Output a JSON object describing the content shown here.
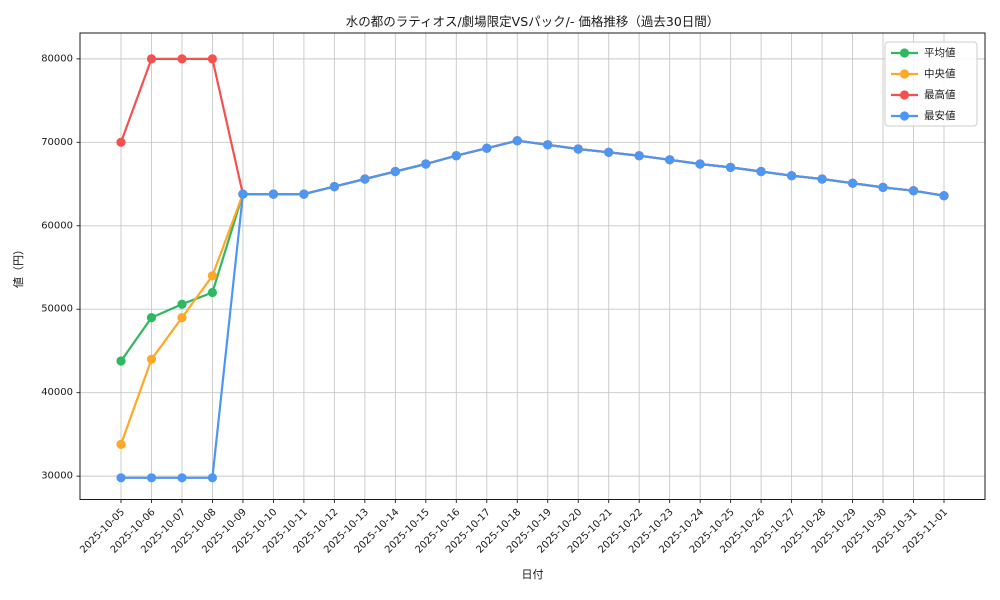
{
  "chart_data": {
    "type": "line",
    "title": "水の都のラティオス/劇場限定VSパック/- 価格推移（過去30日間）",
    "xlabel": "日付",
    "ylabel": "値（円）",
    "grid": true,
    "legend_position": "upper right",
    "ylim": [
      27200,
      83100
    ],
    "yticks": [
      30000,
      40000,
      50000,
      60000,
      70000,
      80000
    ],
    "x": [
      "2025-10-05",
      "2025-10-06",
      "2025-10-07",
      "2025-10-08",
      "2025-10-09",
      "2025-10-10",
      "2025-10-11",
      "2025-10-12",
      "2025-10-13",
      "2025-10-14",
      "2025-10-15",
      "2025-10-16",
      "2025-10-17",
      "2025-10-18",
      "2025-10-19",
      "2025-10-20",
      "2025-10-21",
      "2025-10-22",
      "2025-10-23",
      "2025-10-24",
      "2025-10-25",
      "2025-10-26",
      "2025-10-27",
      "2025-10-28",
      "2025-10-29",
      "2025-10-30",
      "2025-10-31",
      "2025-11-01"
    ],
    "series": [
      {
        "name": "平均値",
        "color": "#2eb860",
        "values": [
          43800,
          49000,
          50600,
          52000,
          63800,
          63800,
          63800,
          64700,
          65600,
          66500,
          67400,
          68400,
          69300,
          70200,
          69700,
          69200,
          68800,
          68400,
          67900,
          67400,
          67000,
          66500,
          66000,
          65600,
          65100,
          64600,
          64200,
          63600
        ]
      },
      {
        "name": "中央値",
        "color": "#ffa726",
        "values": [
          33800,
          44000,
          49000,
          54000,
          63800,
          63800,
          63800,
          64700,
          65600,
          66500,
          67400,
          68400,
          69300,
          70200,
          69700,
          69200,
          68800,
          68400,
          67900,
          67400,
          67000,
          66500,
          66000,
          65600,
          65100,
          64600,
          64200,
          63600
        ]
      },
      {
        "name": "最高値",
        "color": "#f4514e",
        "values": [
          70000,
          80000,
          80000,
          80000,
          63800,
          63800,
          63800,
          64700,
          65600,
          66500,
          67400,
          68400,
          69300,
          70200,
          69700,
          69200,
          68800,
          68400,
          67900,
          67400,
          67000,
          66500,
          66000,
          65600,
          65100,
          64600,
          64200,
          63600
        ]
      },
      {
        "name": "最安値",
        "color": "#4e96f3",
        "values": [
          29800,
          29800,
          29800,
          29800,
          63800,
          63800,
          63800,
          64700,
          65600,
          66500,
          67400,
          68400,
          69300,
          70200,
          69700,
          69200,
          68800,
          68400,
          67900,
          67400,
          67000,
          66500,
          66000,
          65600,
          65100,
          64600,
          64200,
          63600
        ]
      }
    ],
    "style": {
      "grid_color": "#c8c8c8",
      "spine_color": "#1a1a1a",
      "legend_border_color": "#cccccc",
      "background": "#ffffff"
    }
  }
}
